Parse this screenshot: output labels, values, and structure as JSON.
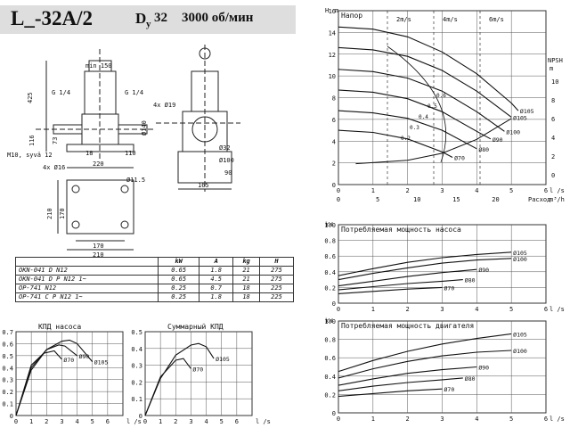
{
  "header": {
    "model": "L_-32A/2",
    "dn": "D",
    "dn_sub": "y",
    "dn_val": "32",
    "speed": "3000 об/мин"
  },
  "dims": {
    "front": [
      "min 150",
      "425",
      "116",
      "73",
      "G 1/4",
      "G 1/4",
      "M10, syvä 12",
      "18",
      "220",
      "110",
      "Ø140",
      "4x Ø16",
      "Ø11.5",
      "210",
      "170",
      "210",
      "170"
    ],
    "side": [
      "4x Ø19",
      "Ø32",
      "Ø100",
      "90",
      "165"
    ]
  },
  "spec_table": {
    "headers": [
      "",
      "kW",
      "A",
      "kg",
      "H"
    ],
    "rows": [
      [
        "OKN-041 D N12",
        "0.65",
        "1.8",
        "21",
        "275"
      ],
      [
        "OKN-041 D P N12 1~",
        "0.65",
        "4.5",
        "21",
        "275"
      ],
      [
        "OP-741 N12",
        "0.25",
        "0.7",
        "18",
        "225"
      ],
      [
        "OP-741 C P N12 1~",
        "0.25",
        "1.8",
        "18",
        "225"
      ]
    ]
  },
  "chart_data": [
    {
      "type": "line",
      "title": "КПД насоса",
      "ylim": [
        0,
        0.7
      ],
      "yticks": [
        "0.7",
        "0.6",
        "0.5",
        "0.4",
        "0.3",
        "0.2",
        "0.1",
        "0"
      ],
      "xlim": [
        0,
        7
      ],
      "xticks": [
        "0",
        "1",
        "2",
        "3",
        "4",
        "5",
        "6"
      ],
      "xunit": "l /s",
      "series": [
        {
          "name": "Ø105",
          "x": [
            0,
            1,
            2,
            3,
            3.5,
            4,
            5
          ],
          "y": [
            0,
            0.38,
            0.55,
            0.62,
            0.63,
            0.6,
            0.45
          ]
        },
        {
          "name": "Ø90",
          "x": [
            0,
            1,
            2,
            2.8,
            3.2,
            4
          ],
          "y": [
            0,
            0.4,
            0.55,
            0.59,
            0.58,
            0.5
          ]
        },
        {
          "name": "Ø70",
          "x": [
            0,
            1,
            1.8,
            2.5,
            3
          ],
          "y": [
            0,
            0.42,
            0.52,
            0.54,
            0.47
          ]
        }
      ]
    },
    {
      "type": "line",
      "title": "Суммарный КПД",
      "ylim": [
        0,
        0.5
      ],
      "yticks": [
        "0.5",
        "0.4",
        "0.3",
        "0.2",
        "0.1",
        "0"
      ],
      "xlim": [
        0,
        7
      ],
      "xticks": [
        "0",
        "1",
        "2",
        "3",
        "4",
        "5",
        "6"
      ],
      "xunit": "l /s",
      "series": [
        {
          "name": "Ø105",
          "x": [
            0,
            1,
            2,
            3,
            3.5,
            4,
            4.5
          ],
          "y": [
            0,
            0.22,
            0.36,
            0.42,
            0.43,
            0.41,
            0.34
          ]
        },
        {
          "name": "Ø70",
          "x": [
            0,
            1,
            2,
            2.5,
            3
          ],
          "y": [
            0,
            0.23,
            0.33,
            0.34,
            0.28
          ]
        }
      ]
    },
    {
      "type": "line",
      "title": "Напор",
      "ylabel": "H",
      "yunit": "m",
      "ylim": [
        0,
        16
      ],
      "yticks": [
        "16",
        "14",
        "12",
        "10",
        "8",
        "6",
        "4",
        "2",
        "0"
      ],
      "xlim": [
        0,
        6
      ],
      "xticks": [
        "0",
        "1",
        "2",
        "3",
        "4",
        "5",
        "6"
      ],
      "xunit": "l /s",
      "x2ticks": [
        "0",
        "5",
        "10",
        "15",
        "20"
      ],
      "x2unit": "m³/h",
      "x2label": "Расход",
      "velocities": [
        "2m/s",
        "4m/s",
        "6m/s"
      ],
      "npsh": {
        "label": "NPSH",
        "unit": "m",
        "yticks": [
          "10",
          "8",
          "6",
          "4",
          "2",
          "0"
        ],
        "x": [
          0.5,
          2,
          3,
          4,
          5
        ],
        "y": [
          1.2,
          1.4,
          1.8,
          2.6,
          3.8
        ]
      },
      "efficiency_labels": [
        "0.2",
        "0.3",
        "0.4",
        "0.5",
        "0.6"
      ],
      "series": [
        {
          "name": "Ø105",
          "x": [
            0,
            1,
            2,
            3,
            4,
            5,
            5.2
          ],
          "y": [
            14.5,
            14.3,
            13.6,
            12.2,
            10.2,
            7.5,
            6.8
          ]
        },
        {
          "name": "Ø105",
          "x": [
            0,
            1,
            2,
            3,
            4,
            5
          ],
          "y": [
            12.6,
            12.4,
            11.8,
            10.5,
            8.6,
            6.2
          ]
        },
        {
          "name": "Ø100",
          "x": [
            0,
            1,
            2,
            3,
            4,
            4.8
          ],
          "y": [
            10.6,
            10.4,
            9.8,
            8.6,
            6.7,
            4.9
          ]
        },
        {
          "name": "Ø90",
          "x": [
            0,
            1,
            2,
            3,
            4,
            4.4
          ],
          "y": [
            8.7,
            8.5,
            7.9,
            6.7,
            4.9,
            4.2
          ]
        },
        {
          "name": "Ø80",
          "x": [
            0,
            1,
            2,
            3,
            4
          ],
          "y": [
            6.8,
            6.6,
            6.1,
            5.0,
            3.3
          ]
        },
        {
          "name": "Ø70",
          "x": [
            0,
            1,
            2,
            3,
            3.3
          ],
          "y": [
            5.0,
            4.8,
            4.2,
            3.0,
            2.5
          ]
        }
      ]
    },
    {
      "type": "line",
      "title": "Потребляемая мощность насоса",
      "ylabel": "kW",
      "ylim": [
        0,
        1.0
      ],
      "yticks": [
        "1.0",
        "0.8",
        "0.6",
        "0.4",
        "0.2",
        "0"
      ],
      "xlim": [
        0,
        6
      ],
      "xticks": [
        "0",
        "1",
        "2",
        "3",
        "4",
        "5",
        "6"
      ],
      "xunit": "l /s",
      "series": [
        {
          "name": "Ø105",
          "x": [
            0,
            1,
            2,
            3,
            4,
            5
          ],
          "y": [
            0.35,
            0.44,
            0.52,
            0.58,
            0.62,
            0.65
          ]
        },
        {
          "name": "Ø100",
          "x": [
            0,
            1,
            2,
            3,
            4,
            5
          ],
          "y": [
            0.3,
            0.38,
            0.45,
            0.51,
            0.55,
            0.57
          ]
        },
        {
          "name": "Ø90",
          "x": [
            0,
            1,
            2,
            3,
            4
          ],
          "y": [
            0.22,
            0.28,
            0.34,
            0.39,
            0.43
          ]
        },
        {
          "name": "Ø80",
          "x": [
            0,
            1,
            2,
            3,
            3.6
          ],
          "y": [
            0.17,
            0.21,
            0.25,
            0.28,
            0.3
          ]
        },
        {
          "name": "Ø70",
          "x": [
            0,
            1,
            2,
            3
          ],
          "y": [
            0.12,
            0.15,
            0.18,
            0.2
          ]
        }
      ]
    },
    {
      "type": "line",
      "title": "Потребляемая мощность двигателя",
      "ylabel": "kW",
      "ylim": [
        0,
        1.0
      ],
      "yticks": [
        "1.0",
        "0.8",
        "0.6",
        "0.4",
        "0.2",
        "0"
      ],
      "xlim": [
        0,
        6
      ],
      "xticks": [
        "0",
        "1",
        "2",
        "3",
        "4",
        "5",
        "6"
      ],
      "xunit": "l /s",
      "series": [
        {
          "name": "Ø105",
          "x": [
            0,
            1,
            2,
            3,
            4,
            5
          ],
          "y": [
            0.45,
            0.57,
            0.67,
            0.75,
            0.81,
            0.86
          ]
        },
        {
          "name": "Ø100",
          "x": [
            0,
            1,
            2,
            3,
            4,
            5
          ],
          "y": [
            0.38,
            0.48,
            0.56,
            0.62,
            0.66,
            0.68
          ]
        },
        {
          "name": "Ø90",
          "x": [
            0,
            1,
            2,
            3,
            4
          ],
          "y": [
            0.3,
            0.37,
            0.43,
            0.47,
            0.5
          ]
        },
        {
          "name": "Ø80",
          "x": [
            0,
            1,
            2,
            3,
            3.6
          ],
          "y": [
            0.24,
            0.29,
            0.33,
            0.36,
            0.38
          ]
        },
        {
          "name": "Ø70",
          "x": [
            0,
            1,
            2,
            3
          ],
          "y": [
            0.18,
            0.21,
            0.24,
            0.26
          ]
        }
      ]
    }
  ]
}
